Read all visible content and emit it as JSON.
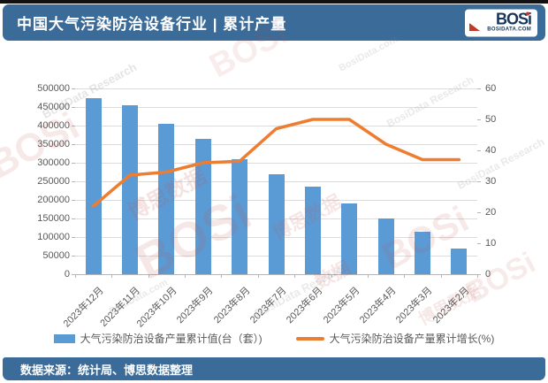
{
  "header": {
    "title": "中国大气污染防治设备行业 | 累计产量",
    "logo": {
      "wordmark": "BOSi",
      "domain": "BOSIDATA.COM"
    }
  },
  "footer": {
    "source": "数据来源：统计局、博思数据整理"
  },
  "colors": {
    "header_bg": "#3a6b99",
    "bar": "#5B9BD5",
    "line": "#ED7D31",
    "watermark_red": "#c0504d",
    "watermark_gray": "#8a8a8a"
  },
  "watermarks": {
    "logo": "BOSi",
    "cn": "博思数据",
    "research": "BosiData Research",
    "domain": "BosiData.com",
    "data": "数据"
  },
  "chart_data": {
    "type": "bar",
    "subtype": "bar+line combo, dual axis",
    "title": "中国大气污染防治设备行业 | 累计产量",
    "categories": [
      "2023年12月",
      "2023年11月",
      "2023年10月",
      "2023年9月",
      "2023年8月",
      "2023年7月",
      "2023年6月",
      "2023年5月",
      "2023年4月",
      "2023年3月",
      "2023年2月"
    ],
    "series": [
      {
        "name": "大气污染防治设备产量累计值(台（套）)",
        "type": "bar",
        "axis": "left",
        "color": "#5B9BD5",
        "values": [
          475000,
          455000,
          405000,
          365000,
          310000,
          270000,
          235000,
          190000,
          150000,
          115000,
          70000
        ]
      },
      {
        "name": "大气污染防治设备产量累计增长(%)",
        "type": "line",
        "axis": "right",
        "color": "#ED7D31",
        "values": [
          22,
          32,
          33,
          36,
          36.5,
          47,
          50,
          50,
          42,
          37,
          37
        ]
      }
    ],
    "left_axis": {
      "min": 0,
      "max": 500000,
      "step": 50000,
      "ticks": [
        "500000",
        "450000",
        "400000",
        "350000",
        "300000",
        "250000",
        "200000",
        "150000",
        "100000",
        "50000",
        "0"
      ]
    },
    "right_axis": {
      "min": 0,
      "max": 60,
      "step": 10,
      "ticks": [
        "60",
        "50",
        "40",
        "30",
        "20",
        "10",
        "0"
      ]
    },
    "grid": true,
    "legend_position": "bottom",
    "x_label_rotation": -45
  }
}
